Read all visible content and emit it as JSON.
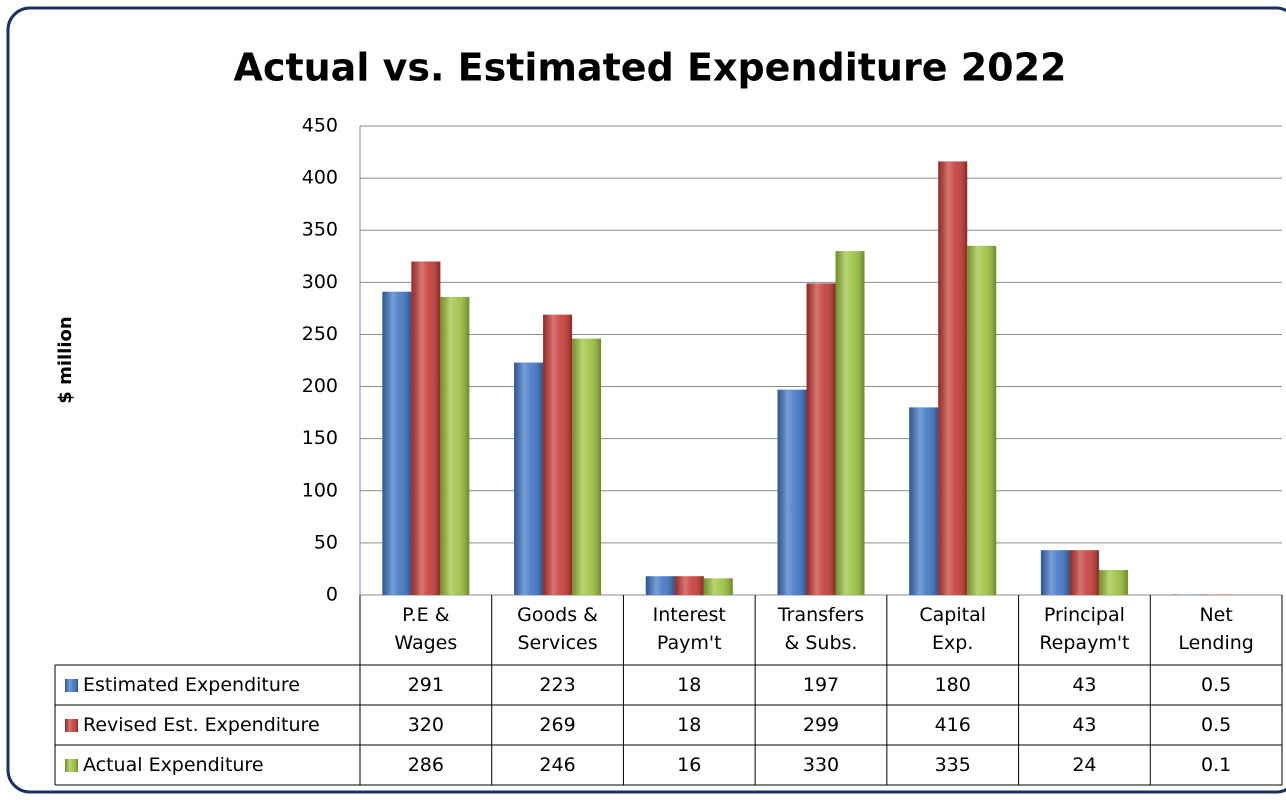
{
  "chart_data": {
    "type": "bar",
    "title": "Actual vs. Estimated Expenditure 2022",
    "y_label": "$ million",
    "categories": [
      "P.E &\nWages",
      "Goods &\nServices",
      "Interest\nPaym't",
      "Transfers\n& Subs.",
      "Capital\nExp.",
      "Principal\nRepaym't",
      "Net\nLending"
    ],
    "series": [
      {
        "name": "Estimated Expenditure",
        "color": "#3f74c4",
        "values": [
          291,
          223,
          18,
          197,
          180,
          43,
          0.5
        ]
      },
      {
        "name": "Revised Est. Expenditure",
        "color": "#c43a36",
        "values": [
          320,
          269,
          18,
          299,
          416,
          43,
          0.5
        ]
      },
      {
        "name": "Actual Expenditure",
        "color": "#9bc13c",
        "values": [
          286,
          246,
          16,
          330,
          335,
          24,
          0.1
        ]
      }
    ],
    "ylim": [
      0,
      450
    ],
    "yticks": [
      0,
      50,
      100,
      150,
      200,
      250,
      300,
      350,
      400,
      450
    ],
    "grid": true,
    "data_table": true
  }
}
